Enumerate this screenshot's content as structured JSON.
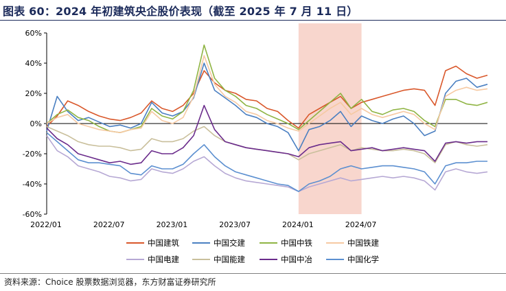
{
  "header": {
    "title": "图表 60：2024 年初建筑央企股价表现（截至 2025 年 7 月 11 日）"
  },
  "footer": {
    "source": "资料来源：Choice 股票数据浏览器，东方财富证券研究所"
  },
  "chart_data": {
    "type": "line",
    "x_tick_labels": [
      "2022/01",
      "2022/07",
      "2023/01",
      "2023/07",
      "2024/01",
      "2024/07"
    ],
    "x_tick_positions": [
      "2022-01",
      "2022-07",
      "2023-01",
      "2023-07",
      "2024-01",
      "2024-07"
    ],
    "xlim": [
      "2022-01",
      "2025-07"
    ],
    "ylim": [
      -60,
      60
    ],
    "y_ticks": [
      60,
      40,
      20,
      0,
      -20,
      -40,
      -60
    ],
    "y_tick_labels": [
      "60%",
      "40%",
      "20%",
      "0%",
      "-20%",
      "-40%",
      "-60%"
    ],
    "legend_position": "bottom",
    "shaded_region": {
      "from": "2024-01",
      "to": "2024-07",
      "color": "#f7cfc4"
    },
    "series": [
      {
        "name": "中国建筑",
        "color": "#d9572a",
        "x": [
          "2022-01",
          "2022-02",
          "2022-03",
          "2022-04",
          "2022-05",
          "2022-06",
          "2022-07",
          "2022-08",
          "2022-09",
          "2022-10",
          "2022-11",
          "2022-12",
          "2023-01",
          "2023-02",
          "2023-03",
          "2023-04",
          "2023-05",
          "2023-06",
          "2023-07",
          "2023-08",
          "2023-09",
          "2023-10",
          "2023-11",
          "2023-12",
          "2024-01",
          "2024-02",
          "2024-03",
          "2024-04",
          "2024-05",
          "2024-06",
          "2024-07",
          "2024-08",
          "2024-09",
          "2024-10",
          "2024-11",
          "2024-12",
          "2025-01",
          "2025-02",
          "2025-03",
          "2025-04",
          "2025-05",
          "2025-06",
          "2025-07"
        ],
        "y": [
          -2,
          5,
          15,
          12,
          8,
          5,
          3,
          2,
          4,
          7,
          15,
          10,
          8,
          12,
          20,
          35,
          27,
          22,
          20,
          16,
          15,
          10,
          8,
          2,
          -3,
          6,
          10,
          14,
          18,
          10,
          14,
          16,
          18,
          20,
          22,
          23,
          22,
          12,
          35,
          38,
          33,
          30,
          32
        ]
      },
      {
        "name": "中国交建",
        "color": "#4a7fc1",
        "x": [
          "2022-01",
          "2022-02",
          "2022-03",
          "2022-04",
          "2022-05",
          "2022-06",
          "2022-07",
          "2022-08",
          "2022-09",
          "2022-10",
          "2022-11",
          "2022-12",
          "2023-01",
          "2023-02",
          "2023-03",
          "2023-04",
          "2023-05",
          "2023-06",
          "2023-07",
          "2023-08",
          "2023-09",
          "2023-10",
          "2023-11",
          "2023-12",
          "2024-01",
          "2024-02",
          "2024-03",
          "2024-04",
          "2024-05",
          "2024-06",
          "2024-07",
          "2024-08",
          "2024-09",
          "2024-10",
          "2024-11",
          "2024-12",
          "2025-01",
          "2025-02",
          "2025-03",
          "2025-04",
          "2025-05",
          "2025-06",
          "2025-07"
        ],
        "y": [
          -5,
          18,
          8,
          2,
          4,
          1,
          -2,
          -1,
          -3,
          0,
          14,
          7,
          5,
          8,
          17,
          40,
          22,
          17,
          12,
          6,
          4,
          0,
          -2,
          -6,
          -18,
          -4,
          -2,
          2,
          8,
          -2,
          5,
          2,
          0,
          3,
          5,
          0,
          -8,
          -5,
          20,
          28,
          30,
          24,
          26
        ]
      },
      {
        "name": "中国中铁",
        "color": "#8fb443",
        "x": [
          "2022-01",
          "2022-02",
          "2022-03",
          "2022-04",
          "2022-05",
          "2022-06",
          "2022-07",
          "2022-08",
          "2022-09",
          "2022-10",
          "2022-11",
          "2022-12",
          "2023-01",
          "2023-02",
          "2023-03",
          "2023-04",
          "2023-05",
          "2023-06",
          "2023-07",
          "2023-08",
          "2023-09",
          "2023-10",
          "2023-11",
          "2023-12",
          "2024-01",
          "2024-02",
          "2024-03",
          "2024-04",
          "2024-05",
          "2024-06",
          "2024-07",
          "2024-08",
          "2024-09",
          "2024-10",
          "2024-11",
          "2024-12",
          "2025-01",
          "2025-02",
          "2025-03",
          "2025-04",
          "2025-05",
          "2025-06",
          "2025-07"
        ],
        "y": [
          0,
          6,
          9,
          4,
          2,
          -2,
          -5,
          -6,
          -4,
          -2,
          10,
          5,
          3,
          8,
          22,
          52,
          30,
          22,
          18,
          12,
          10,
          6,
          3,
          0,
          -4,
          2,
          8,
          14,
          20,
          10,
          16,
          8,
          6,
          9,
          10,
          8,
          2,
          -2,
          16,
          16,
          13,
          12,
          14
        ]
      },
      {
        "name": "中国铁建",
        "color": "#f6c9a2",
        "x": [
          "2022-01",
          "2022-02",
          "2022-03",
          "2022-04",
          "2022-05",
          "2022-06",
          "2022-07",
          "2022-08",
          "2022-09",
          "2022-10",
          "2022-11",
          "2022-12",
          "2023-01",
          "2023-02",
          "2023-03",
          "2023-04",
          "2023-05",
          "2023-06",
          "2023-07",
          "2023-08",
          "2023-09",
          "2023-10",
          "2023-11",
          "2023-12",
          "2024-01",
          "2024-02",
          "2024-03",
          "2024-04",
          "2024-05",
          "2024-06",
          "2024-07",
          "2024-08",
          "2024-09",
          "2024-10",
          "2024-11",
          "2024-12",
          "2025-01",
          "2025-02",
          "2025-03",
          "2025-04",
          "2025-05",
          "2025-06",
          "2025-07"
        ],
        "y": [
          0,
          4,
          6,
          0,
          -2,
          -4,
          -5,
          -6,
          -4,
          -3,
          8,
          2,
          0,
          4,
          18,
          45,
          26,
          18,
          14,
          8,
          6,
          2,
          0,
          -3,
          -5,
          0,
          5,
          10,
          14,
          6,
          10,
          6,
          4,
          6,
          8,
          6,
          0,
          -4,
          18,
          22,
          24,
          22,
          23
        ]
      },
      {
        "name": "中国电建",
        "color": "#b6a8d4",
        "x": [
          "2022-01",
          "2022-02",
          "2022-03",
          "2022-04",
          "2022-05",
          "2022-06",
          "2022-07",
          "2022-08",
          "2022-09",
          "2022-10",
          "2022-11",
          "2022-12",
          "2023-01",
          "2023-02",
          "2023-03",
          "2023-04",
          "2023-05",
          "2023-06",
          "2023-07",
          "2023-08",
          "2023-09",
          "2023-10",
          "2023-11",
          "2023-12",
          "2024-01",
          "2024-02",
          "2024-03",
          "2024-04",
          "2024-05",
          "2024-06",
          "2024-07",
          "2024-08",
          "2024-09",
          "2024-10",
          "2024-11",
          "2024-12",
          "2025-01",
          "2025-02",
          "2025-03",
          "2025-04",
          "2025-05",
          "2025-06",
          "2025-07"
        ],
        "y": [
          -8,
          -18,
          -22,
          -28,
          -30,
          -32,
          -35,
          -36,
          -38,
          -37,
          -30,
          -32,
          -33,
          -30,
          -25,
          -22,
          -28,
          -33,
          -36,
          -38,
          -39,
          -40,
          -41,
          -42,
          -45,
          -42,
          -40,
          -38,
          -36,
          -38,
          -37,
          -36,
          -35,
          -36,
          -35,
          -36,
          -38,
          -44,
          -32,
          -30,
          -32,
          -33,
          -32
        ]
      },
      {
        "name": "中国能建",
        "color": "#c9bf9b",
        "x": [
          "2022-01",
          "2022-02",
          "2022-03",
          "2022-04",
          "2022-05",
          "2022-06",
          "2022-07",
          "2022-08",
          "2022-09",
          "2022-10",
          "2022-11",
          "2022-12",
          "2023-01",
          "2023-02",
          "2023-03",
          "2023-04",
          "2023-05",
          "2023-06",
          "2023-07",
          "2023-08",
          "2023-09",
          "2023-10",
          "2023-11",
          "2023-12",
          "2024-01",
          "2024-02",
          "2024-03",
          "2024-04",
          "2024-05",
          "2024-06",
          "2024-07",
          "2024-08",
          "2024-09",
          "2024-10",
          "2024-11",
          "2024-12",
          "2025-01",
          "2025-02",
          "2025-03",
          "2025-04",
          "2025-05",
          "2025-06",
          "2025-07"
        ],
        "y": [
          -2,
          -5,
          -8,
          -12,
          -14,
          -15,
          -15,
          -16,
          -18,
          -17,
          -10,
          -12,
          -12,
          -10,
          -5,
          -2,
          -8,
          -12,
          -14,
          -16,
          -17,
          -18,
          -19,
          -20,
          -24,
          -20,
          -18,
          -16,
          -14,
          -18,
          -16,
          -17,
          -18,
          -18,
          -17,
          -18,
          -20,
          -26,
          -14,
          -12,
          -14,
          -15,
          -14
        ]
      },
      {
        "name": "中国中冶",
        "color": "#6a2b8b",
        "x": [
          "2022-01",
          "2022-02",
          "2022-03",
          "2022-04",
          "2022-05",
          "2022-06",
          "2022-07",
          "2022-08",
          "2022-09",
          "2022-10",
          "2022-11",
          "2022-12",
          "2023-01",
          "2023-02",
          "2023-03",
          "2023-04",
          "2023-05",
          "2023-06",
          "2023-07",
          "2023-08",
          "2023-09",
          "2023-10",
          "2023-11",
          "2023-12",
          "2024-01",
          "2024-02",
          "2024-03",
          "2024-04",
          "2024-05",
          "2024-06",
          "2024-07",
          "2024-08",
          "2024-09",
          "2024-10",
          "2024-11",
          "2024-12",
          "2025-01",
          "2025-02",
          "2025-03",
          "2025-04",
          "2025-05",
          "2025-06",
          "2025-07"
        ],
        "y": [
          -3,
          -10,
          -14,
          -20,
          -22,
          -24,
          -26,
          -25,
          -27,
          -26,
          -18,
          -20,
          -20,
          -16,
          -8,
          12,
          -4,
          -12,
          -14,
          -16,
          -17,
          -18,
          -19,
          -20,
          -22,
          -16,
          -14,
          -13,
          -12,
          -18,
          -17,
          -16,
          -18,
          -17,
          -16,
          -17,
          -18,
          -25,
          -13,
          -12,
          -13,
          -12,
          -12
        ]
      },
      {
        "name": "中国化学",
        "color": "#5b8fd0",
        "x": [
          "2022-01",
          "2022-02",
          "2022-03",
          "2022-04",
          "2022-05",
          "2022-06",
          "2022-07",
          "2022-08",
          "2022-09",
          "2022-10",
          "2022-11",
          "2022-12",
          "2023-01",
          "2023-02",
          "2023-03",
          "2023-04",
          "2023-05",
          "2023-06",
          "2023-07",
          "2023-08",
          "2023-09",
          "2023-10",
          "2023-11",
          "2023-12",
          "2024-01",
          "2024-02",
          "2024-03",
          "2024-04",
          "2024-05",
          "2024-06",
          "2024-07",
          "2024-08",
          "2024-09",
          "2024-10",
          "2024-11",
          "2024-12",
          "2025-01",
          "2025-02",
          "2025-03",
          "2025-04",
          "2025-05",
          "2025-06",
          "2025-07"
        ],
        "y": [
          -6,
          -12,
          -18,
          -24,
          -26,
          -26,
          -27,
          -28,
          -33,
          -34,
          -28,
          -30,
          -30,
          -27,
          -20,
          -14,
          -22,
          -28,
          -32,
          -34,
          -36,
          -38,
          -40,
          -41,
          -45,
          -40,
          -38,
          -35,
          -30,
          -28,
          -30,
          -29,
          -28,
          -28,
          -29,
          -30,
          -32,
          -40,
          -28,
          -26,
          -26,
          -25,
          -25
        ]
      }
    ]
  }
}
